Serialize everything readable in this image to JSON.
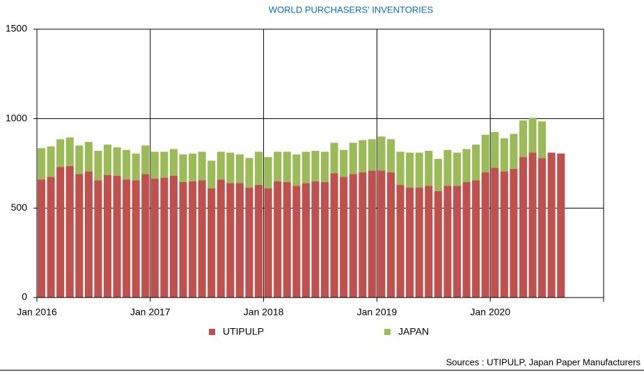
{
  "chart_data": {
    "type": "stacked_bar",
    "title": "WORLD PURCHASERS' INVENTORIES",
    "source": "Sources : UTIPULP, Japan Paper Manufacturers",
    "categories": [
      "Jan 2016",
      null,
      null,
      null,
      null,
      null,
      null,
      null,
      null,
      null,
      null,
      null,
      "Jan 2017",
      null,
      null,
      null,
      null,
      null,
      null,
      null,
      null,
      null,
      null,
      null,
      "Jan 2018",
      null,
      null,
      null,
      null,
      null,
      null,
      null,
      null,
      null,
      null,
      null,
      "Jan 2019",
      null,
      null,
      null,
      null,
      null,
      null,
      null,
      null,
      null,
      null,
      null,
      "Jan 2020",
      null,
      null,
      null,
      null,
      null,
      null,
      null
    ],
    "series": [
      {
        "name": "UTIPULP",
        "color": "#c0504d",
        "values": [
          660,
          675,
          730,
          735,
          690,
          705,
          655,
          685,
          680,
          660,
          655,
          690,
          665,
          670,
          680,
          645,
          650,
          655,
          610,
          660,
          640,
          640,
          615,
          630,
          610,
          650,
          645,
          625,
          640,
          650,
          645,
          695,
          675,
          690,
          700,
          710,
          710,
          700,
          630,
          615,
          615,
          625,
          595,
          625,
          625,
          645,
          655,
          700,
          725,
          705,
          720,
          785,
          810,
          780,
          810,
          805
        ]
      },
      {
        "name": "JAPAN",
        "color": "#9bbb59",
        "values": [
          175,
          170,
          155,
          160,
          160,
          165,
          165,
          170,
          160,
          165,
          150,
          160,
          150,
          145,
          150,
          155,
          155,
          160,
          155,
          155,
          170,
          160,
          165,
          185,
          175,
          165,
          170,
          175,
          175,
          170,
          170,
          170,
          150,
          175,
          180,
          175,
          190,
          185,
          185,
          195,
          195,
          195,
          180,
          200,
          185,
          185,
          200,
          210,
          200,
          185,
          195,
          205,
          195,
          205,
          null,
          null
        ]
      }
    ],
    "ylim": [
      0,
      1500
    ],
    "yticks": [
      0,
      500,
      1000,
      1500
    ],
    "grid": true
  }
}
